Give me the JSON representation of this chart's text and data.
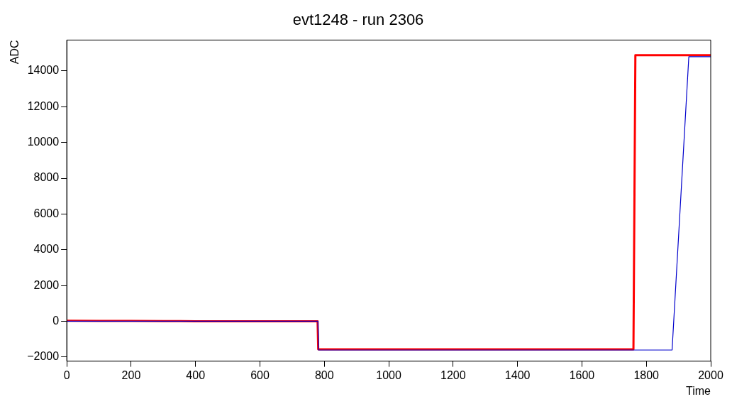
{
  "chart_data": {
    "type": "line",
    "title": "evt1248 - run 2306",
    "xlabel": "Time",
    "ylabel": "ADC",
    "xlim": [
      0,
      2000
    ],
    "xticks": [
      0,
      200,
      400,
      600,
      800,
      1000,
      1200,
      1400,
      1600,
      1800,
      2000
    ],
    "ylim": [
      -2230,
      15730
    ],
    "yticks": [
      {
        "value": -2000,
        "label": "−2000"
      },
      0,
      2000,
      4000,
      6000,
      8000,
      10000,
      12000,
      14000
    ],
    "grid": false,
    "legend": false,
    "marker": "none",
    "line_style": "solid",
    "series": [
      {
        "color": "#0000cc",
        "x": [
          0,
          100,
          200,
          300,
          400,
          500,
          600,
          700,
          780,
          782,
          1880,
          1932,
          2000
        ],
        "values": [
          0,
          0,
          0,
          0,
          0,
          0,
          0,
          0,
          0,
          -1610,
          -1610,
          14800,
          14800
        ]
      },
      {
        "color": "#ff0000",
        "x": [
          0,
          100,
          200,
          300,
          400,
          500,
          600,
          700,
          779,
          781,
          1760,
          1766,
          2000
        ],
        "values": [
          30,
          20,
          20,
          10,
          0,
          0,
          0,
          0,
          0,
          -1570,
          -1570,
          14880,
          14880
        ]
      }
    ]
  }
}
